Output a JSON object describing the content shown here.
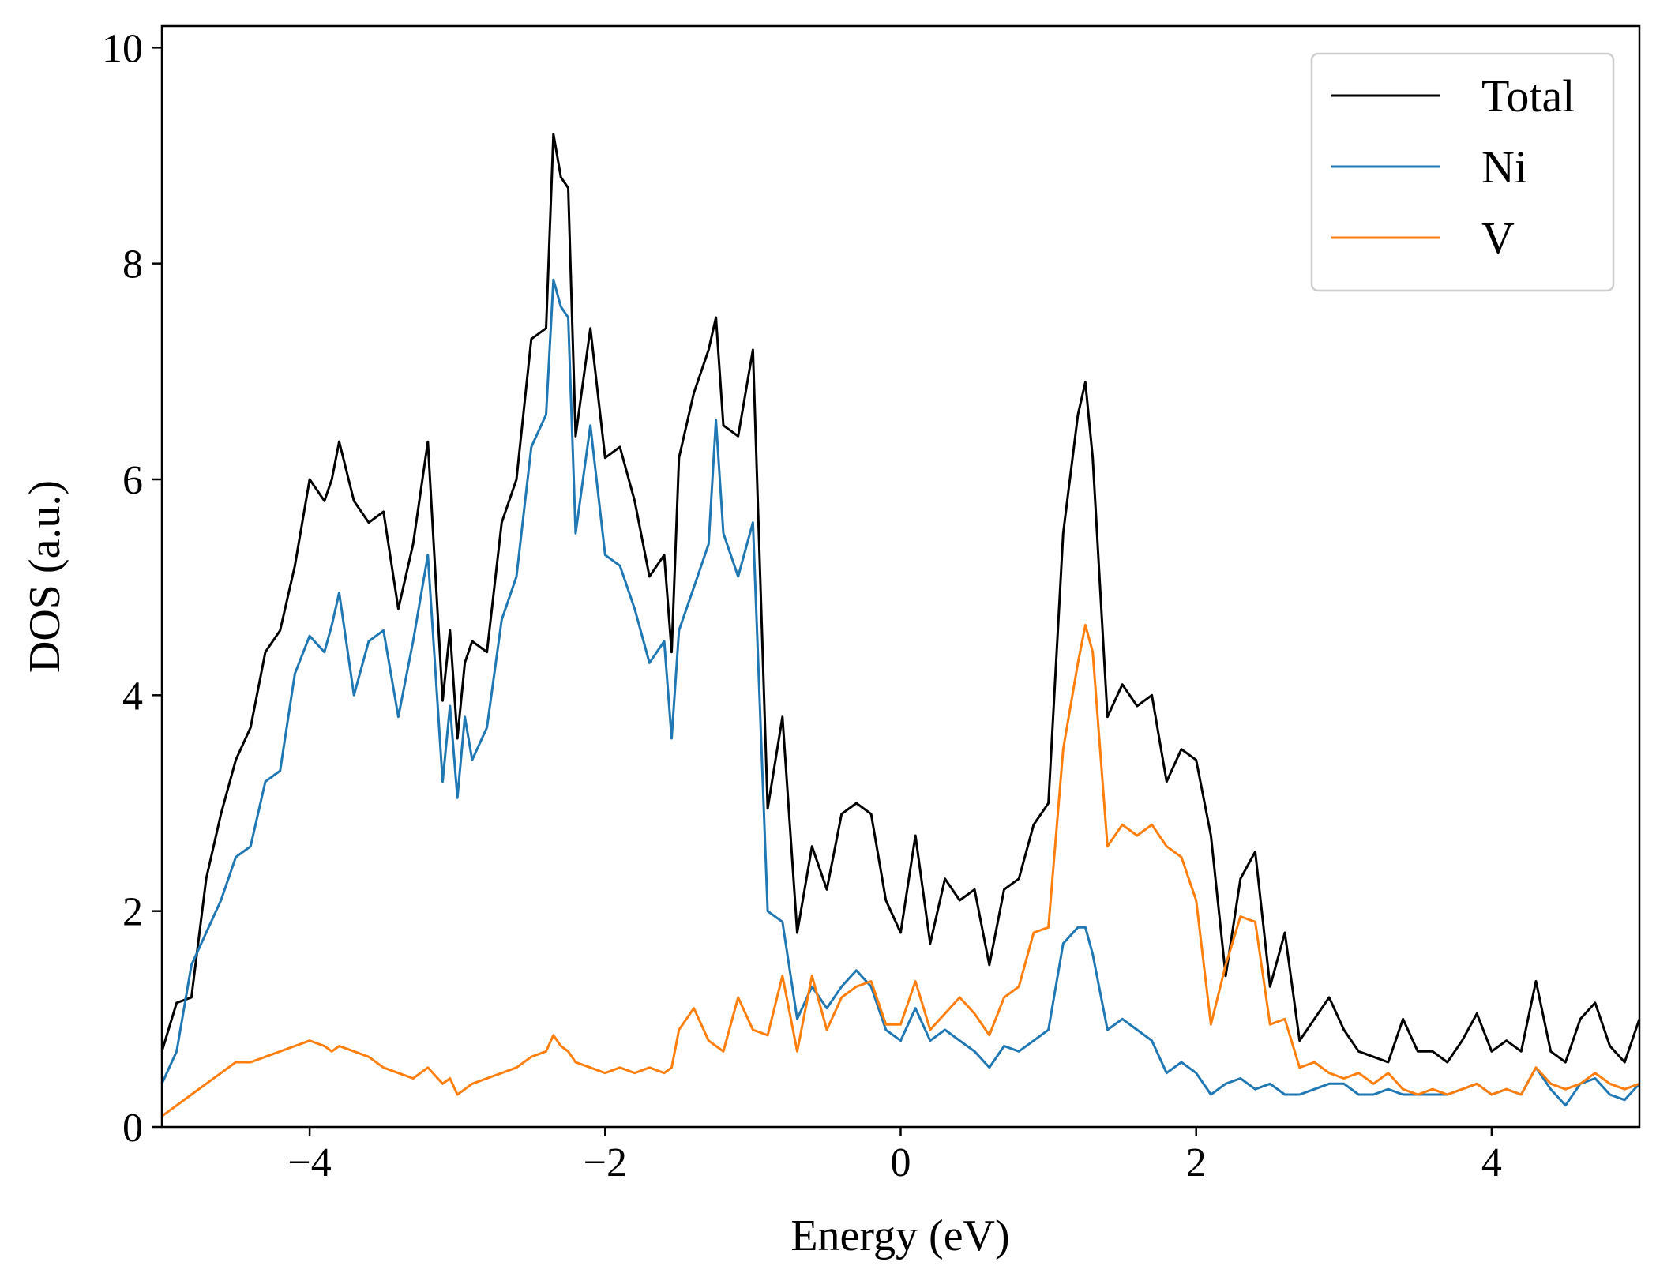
{
  "chart_data": {
    "type": "line",
    "title": "",
    "xlabel": "Energy (eV)",
    "ylabel": "DOS (a.u.)",
    "xlim": [
      -5,
      5
    ],
    "ylim": [
      0,
      10.2
    ],
    "xticks": [
      -4,
      -2,
      0,
      2,
      4
    ],
    "xtick_labels": [
      "−4",
      "−2",
      "0",
      "2",
      "4"
    ],
    "yticks": [
      0,
      2,
      4,
      6,
      8,
      10
    ],
    "ytick_labels": [
      "0",
      "2",
      "4",
      "6",
      "8",
      "10"
    ],
    "grid": false,
    "legend_position": "top-right",
    "x": [
      -5.0,
      -4.9,
      -4.8,
      -4.7,
      -4.6,
      -4.5,
      -4.4,
      -4.3,
      -4.2,
      -4.1,
      -4.0,
      -3.9,
      -3.85,
      -3.8,
      -3.7,
      -3.6,
      -3.5,
      -3.4,
      -3.3,
      -3.2,
      -3.1,
      -3.05,
      -3.0,
      -2.95,
      -2.9,
      -2.8,
      -2.7,
      -2.6,
      -2.5,
      -2.4,
      -2.35,
      -2.3,
      -2.25,
      -2.2,
      -2.1,
      -2.0,
      -1.9,
      -1.8,
      -1.7,
      -1.6,
      -1.55,
      -1.5,
      -1.4,
      -1.3,
      -1.25,
      -1.2,
      -1.1,
      -1.0,
      -0.9,
      -0.8,
      -0.7,
      -0.6,
      -0.5,
      -0.4,
      -0.3,
      -0.2,
      -0.1,
      0.0,
      0.1,
      0.2,
      0.3,
      0.4,
      0.5,
      0.6,
      0.7,
      0.8,
      0.9,
      1.0,
      1.1,
      1.2,
      1.25,
      1.3,
      1.4,
      1.5,
      1.6,
      1.7,
      1.8,
      1.9,
      2.0,
      2.1,
      2.2,
      2.3,
      2.4,
      2.5,
      2.6,
      2.7,
      2.8,
      2.9,
      3.0,
      3.1,
      3.2,
      3.3,
      3.4,
      3.5,
      3.6,
      3.7,
      3.8,
      3.9,
      4.0,
      4.1,
      4.2,
      4.3,
      4.4,
      4.5,
      4.6,
      4.7,
      4.8,
      4.9,
      5.0
    ],
    "series": [
      {
        "name": "Total",
        "color": "#000000",
        "values": [
          0.7,
          1.15,
          1.2,
          2.3,
          2.9,
          3.4,
          3.7,
          4.4,
          4.6,
          5.2,
          6.0,
          5.8,
          6.0,
          6.35,
          5.8,
          5.6,
          5.7,
          4.8,
          5.4,
          6.35,
          3.95,
          4.6,
          3.6,
          4.3,
          4.5,
          4.4,
          5.6,
          6.0,
          7.3,
          7.4,
          9.2,
          8.8,
          8.7,
          6.4,
          7.4,
          6.2,
          6.3,
          5.8,
          5.1,
          5.3,
          4.4,
          6.2,
          6.8,
          7.2,
          7.5,
          6.5,
          6.4,
          7.2,
          2.95,
          3.8,
          1.8,
          2.6,
          2.2,
          2.9,
          3.0,
          2.9,
          2.1,
          1.8,
          2.7,
          1.7,
          2.3,
          2.1,
          2.2,
          1.5,
          2.2,
          2.3,
          2.8,
          3.0,
          5.5,
          6.6,
          6.9,
          6.2,
          3.8,
          4.1,
          3.9,
          4.0,
          3.2,
          3.5,
          3.4,
          2.7,
          1.4,
          2.3,
          2.55,
          1.3,
          1.8,
          0.8,
          1.0,
          1.2,
          0.9,
          0.7,
          0.65,
          0.6,
          1.0,
          0.7,
          0.7,
          0.6,
          0.8,
          1.05,
          0.7,
          0.8,
          0.7,
          1.35,
          0.7,
          0.6,
          1.0,
          1.15,
          0.75,
          0.6,
          1.0
        ]
      },
      {
        "name": "Ni",
        "color": "#1f77b4",
        "values": [
          0.4,
          0.7,
          1.5,
          1.8,
          2.1,
          2.5,
          2.6,
          3.2,
          3.3,
          4.2,
          4.55,
          4.4,
          4.65,
          4.95,
          4.0,
          4.5,
          4.6,
          3.8,
          4.5,
          5.3,
          3.2,
          3.9,
          3.05,
          3.8,
          3.4,
          3.7,
          4.7,
          5.1,
          6.3,
          6.6,
          7.85,
          7.6,
          7.5,
          5.5,
          6.5,
          5.3,
          5.2,
          4.8,
          4.3,
          4.5,
          3.6,
          4.6,
          5.0,
          5.4,
          6.55,
          5.5,
          5.1,
          5.6,
          2.0,
          1.9,
          1.0,
          1.3,
          1.1,
          1.3,
          1.45,
          1.3,
          0.9,
          0.8,
          1.1,
          0.8,
          0.9,
          0.8,
          0.7,
          0.55,
          0.75,
          0.7,
          0.8,
          0.9,
          1.7,
          1.85,
          1.85,
          1.6,
          0.9,
          1.0,
          0.9,
          0.8,
          0.5,
          0.6,
          0.5,
          0.3,
          0.4,
          0.45,
          0.35,
          0.4,
          0.3,
          0.3,
          0.35,
          0.4,
          0.4,
          0.3,
          0.3,
          0.35,
          0.3,
          0.3,
          0.3,
          0.3,
          0.35,
          0.4,
          0.3,
          0.35,
          0.3,
          0.55,
          0.35,
          0.2,
          0.4,
          0.45,
          0.3,
          0.25,
          0.4
        ]
      },
      {
        "name": "V",
        "color": "#ff7f0e",
        "values": [
          0.1,
          0.2,
          0.3,
          0.4,
          0.5,
          0.6,
          0.6,
          0.65,
          0.7,
          0.75,
          0.8,
          0.75,
          0.7,
          0.75,
          0.7,
          0.65,
          0.55,
          0.5,
          0.45,
          0.55,
          0.4,
          0.45,
          0.3,
          0.35,
          0.4,
          0.45,
          0.5,
          0.55,
          0.65,
          0.7,
          0.85,
          0.75,
          0.7,
          0.6,
          0.55,
          0.5,
          0.55,
          0.5,
          0.55,
          0.5,
          0.55,
          0.9,
          1.1,
          0.8,
          0.75,
          0.7,
          1.2,
          0.9,
          0.85,
          1.4,
          0.7,
          1.4,
          0.9,
          1.2,
          1.3,
          1.35,
          0.95,
          0.95,
          1.35,
          0.9,
          1.05,
          1.2,
          1.05,
          0.85,
          1.2,
          1.3,
          1.8,
          1.85,
          3.5,
          4.3,
          4.65,
          4.4,
          2.6,
          2.8,
          2.7,
          2.8,
          2.6,
          2.5,
          2.1,
          0.95,
          1.5,
          1.95,
          1.9,
          0.95,
          1.0,
          0.55,
          0.6,
          0.5,
          0.45,
          0.5,
          0.4,
          0.5,
          0.35,
          0.3,
          0.35,
          0.3,
          0.35,
          0.4,
          0.3,
          0.35,
          0.3,
          0.55,
          0.4,
          0.35,
          0.4,
          0.5,
          0.4,
          0.35,
          0.4
        ]
      }
    ]
  }
}
